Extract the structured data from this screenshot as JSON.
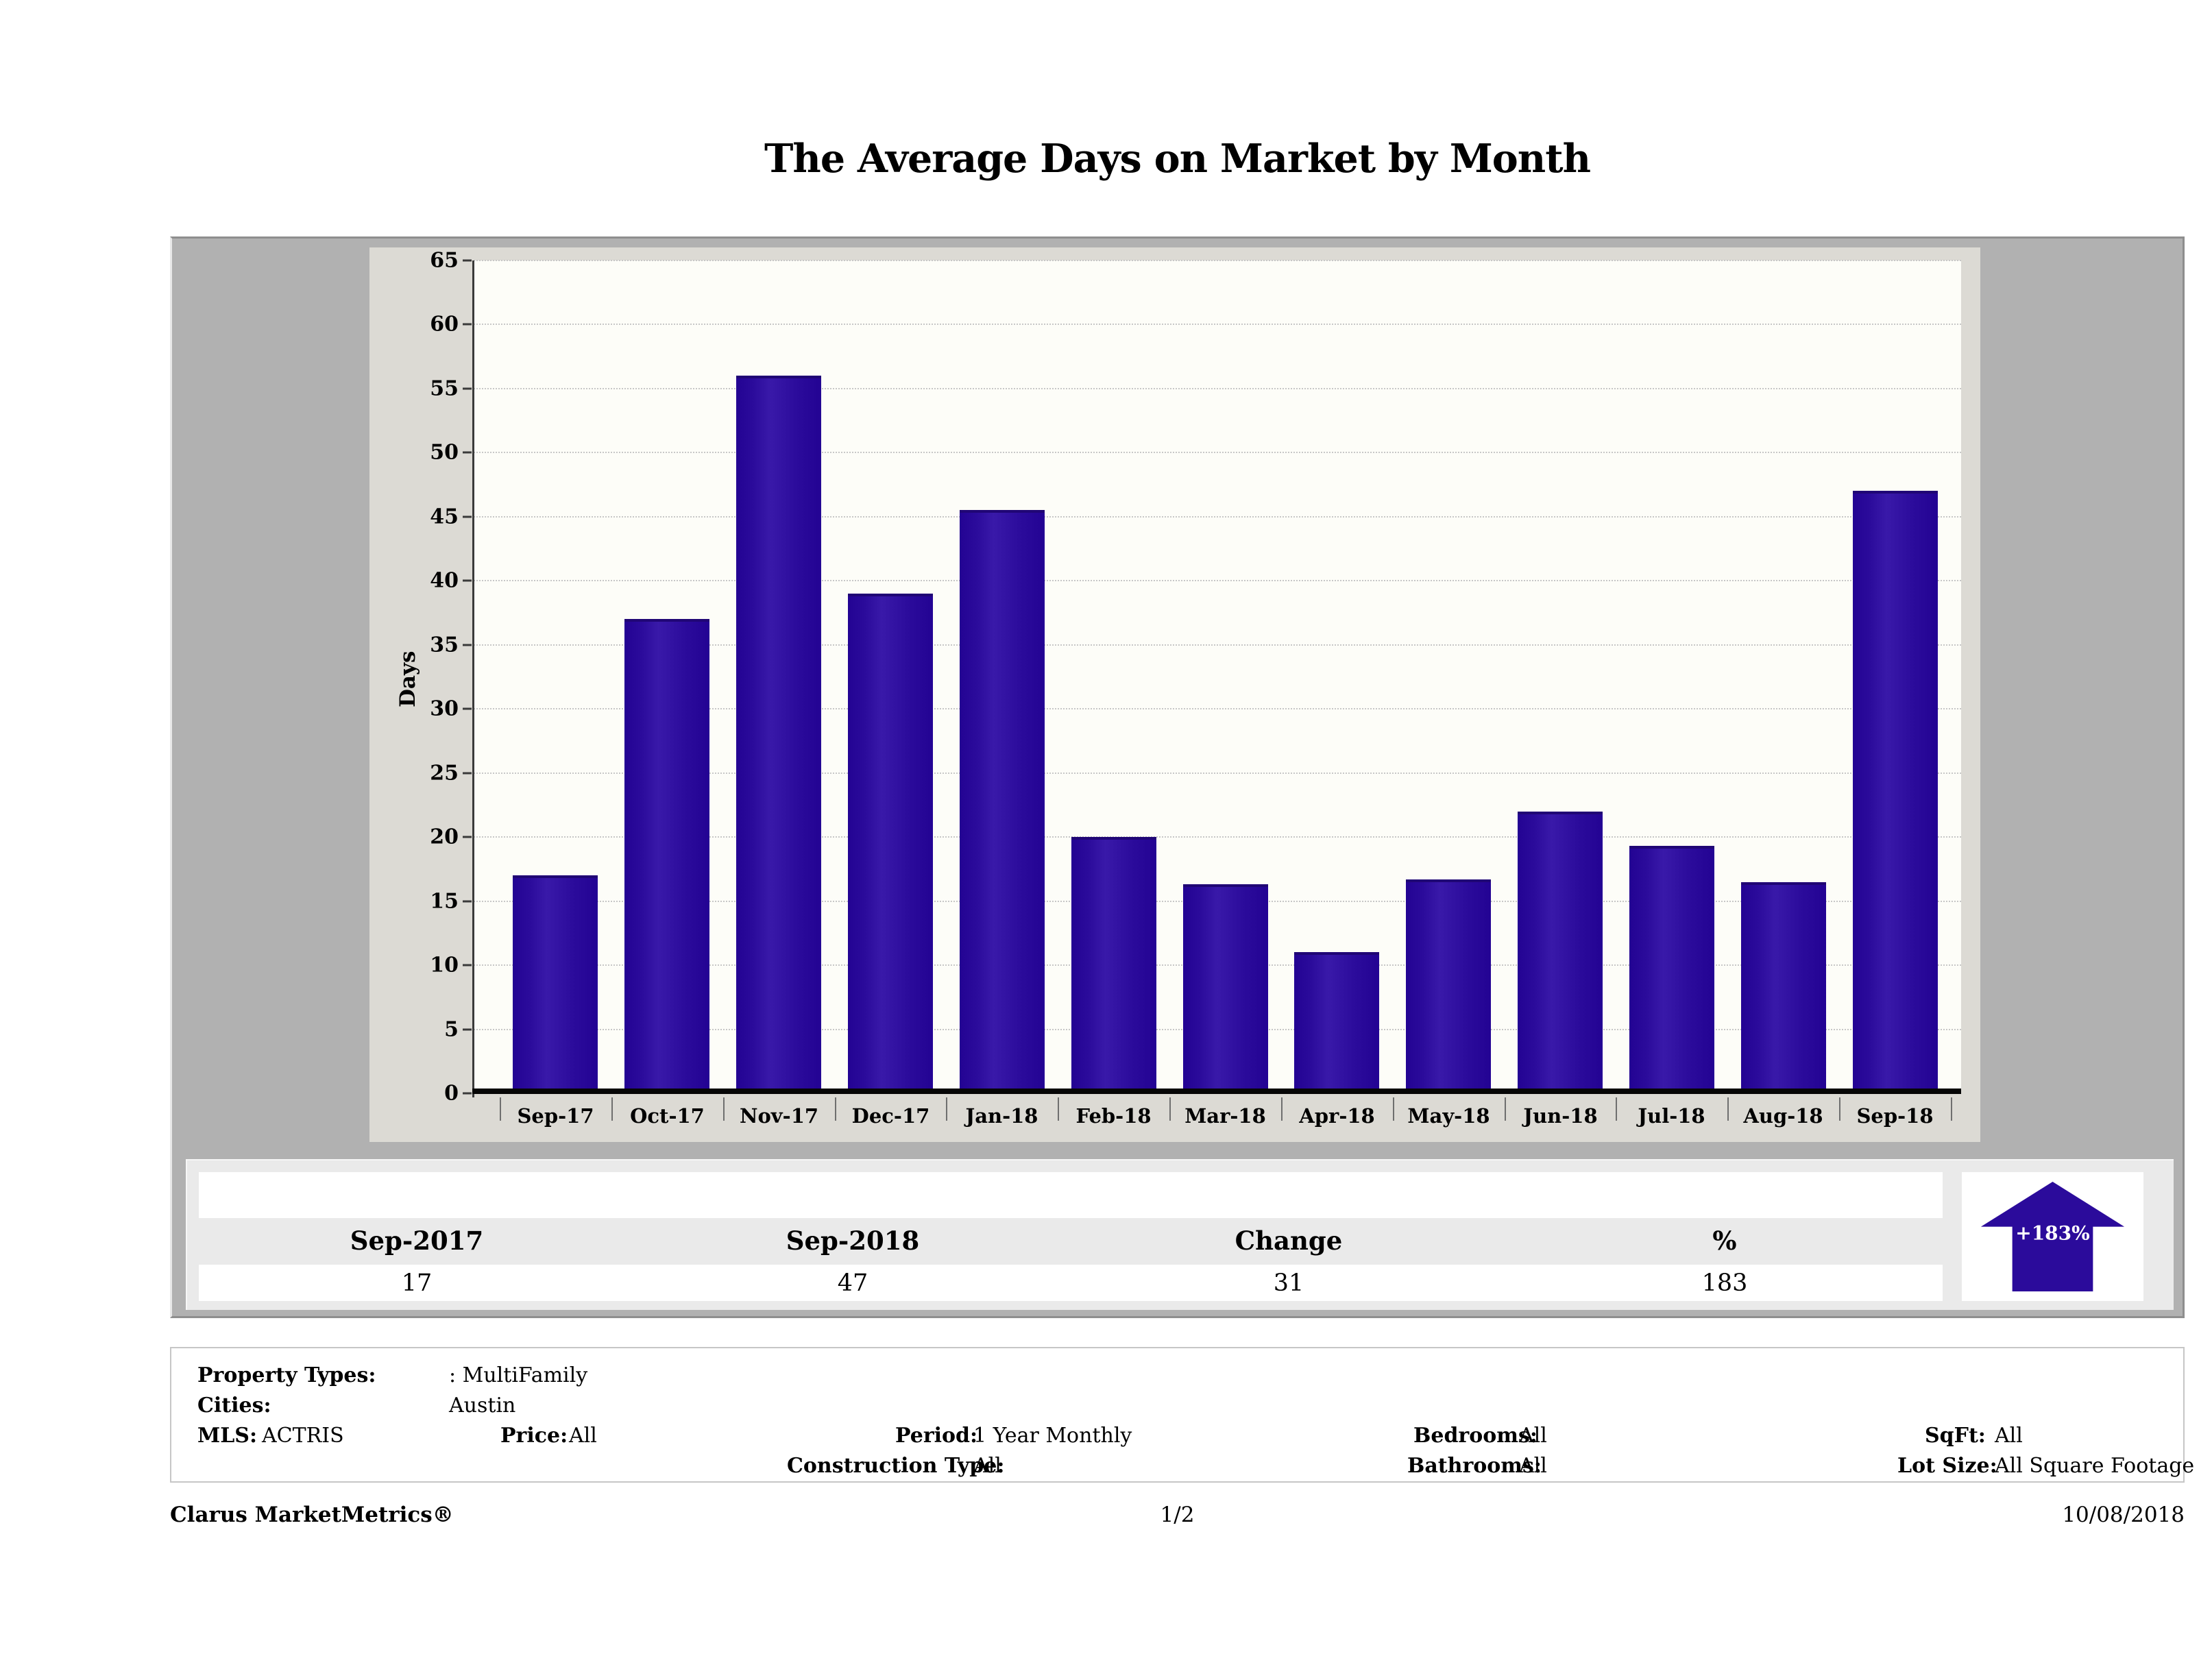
{
  "title": "The Average Days on Market by Month",
  "chart_data": {
    "type": "bar",
    "title": "The Average Days on Market by Month",
    "xlabel": "",
    "ylabel": "Days",
    "categories": [
      "Sep-17",
      "Oct-17",
      "Nov-17",
      "Dec-17",
      "Jan-18",
      "Feb-18",
      "Mar-18",
      "Apr-18",
      "May-18",
      "Jun-18",
      "Jul-18",
      "Aug-18",
      "Sep-18"
    ],
    "values": [
      17,
      37,
      56,
      39,
      45.5,
      20,
      16.3,
      11,
      16.7,
      22,
      19.3,
      16.5,
      47
    ],
    "ylim": [
      0,
      65
    ],
    "ytick_step": 5,
    "ytick_labels": [
      "0",
      "5",
      "10",
      "15",
      "20",
      "25",
      "30",
      "35",
      "40",
      "45",
      "50",
      "55",
      "60",
      "65"
    ],
    "grid": true,
    "legend": "none",
    "bar_color": "#2b0b9b"
  },
  "summary_table": {
    "headers": [
      "Sep-2017",
      "Sep-2018",
      "Change",
      "%"
    ],
    "values": [
      "17",
      "47",
      "31",
      "183"
    ]
  },
  "change_indicator": {
    "label": "+183%",
    "direction": "up",
    "color": "#2b0b9b"
  },
  "filters": {
    "property_types_label": "Property Types:",
    "property_types_value": ": MultiFamily",
    "cities_label": "Cities:",
    "cities_value": "Austin",
    "mls_label": "MLS:",
    "mls_value": "ACTRIS",
    "price_label": "Price:",
    "price_value": "All",
    "period_label": "Period:",
    "period_value": "1 Year Monthly",
    "construction_label": "Construction Type:",
    "construction_value": "All",
    "bedrooms_label": "Bedrooms:",
    "bedrooms_value": "All",
    "bathrooms_label": "Bathrooms:",
    "bathrooms_value": "All",
    "sqft_label": "SqFt:",
    "sqft_value": "All",
    "lot_size_label": "Lot Size:",
    "lot_size_value": "All Square Footage"
  },
  "footer": {
    "brand": "Clarus MarketMetrics®",
    "page": "1/2",
    "date": "10/08/2018"
  }
}
